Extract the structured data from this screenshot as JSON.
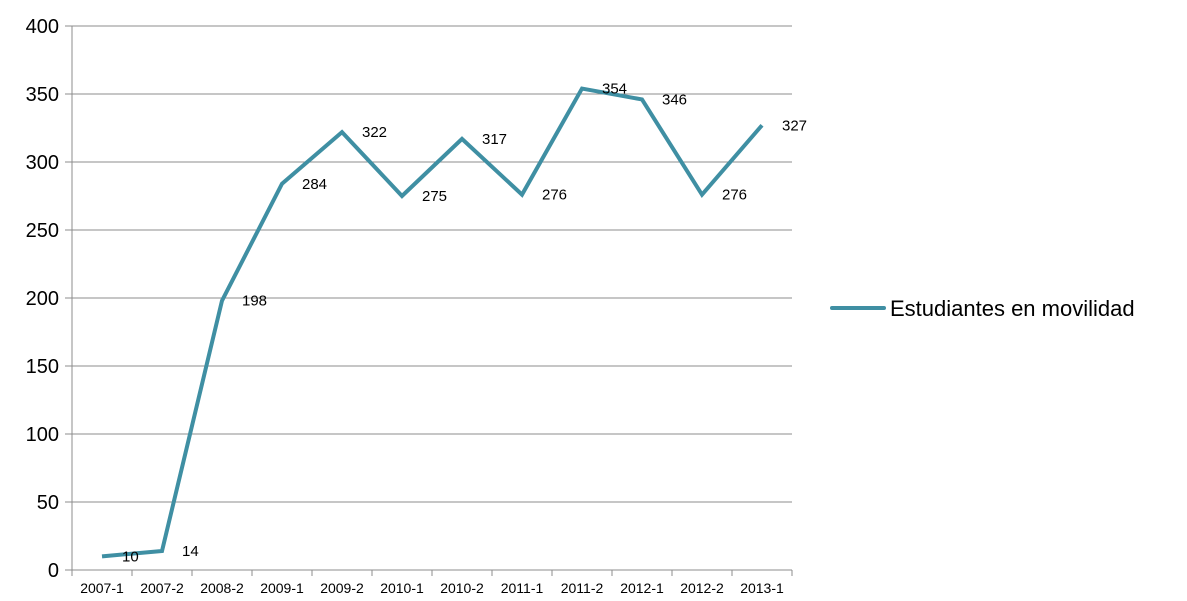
{
  "chart_data": {
    "type": "line",
    "categories": [
      "2007-1",
      "2007-2",
      "2008-2",
      "2009-1",
      "2009-2",
      "2010-1",
      "2010-2",
      "2011-1",
      "2011-2",
      "2012-1",
      "2012-2",
      "2013-1"
    ],
    "series": [
      {
        "name": "Estudiantes en movilidad",
        "values": [
          10,
          14,
          198,
          284,
          322,
          275,
          317,
          276,
          354,
          346,
          276,
          327
        ],
        "color": "#3f8fa3"
      }
    ],
    "ylim": [
      0,
      400
    ],
    "yticks": [
      "0",
      "50",
      "100",
      "150",
      "200",
      "250",
      "300",
      "350",
      "400"
    ],
    "grid": true,
    "legend_position": "right",
    "gridline_color": "#8c8c8c"
  }
}
